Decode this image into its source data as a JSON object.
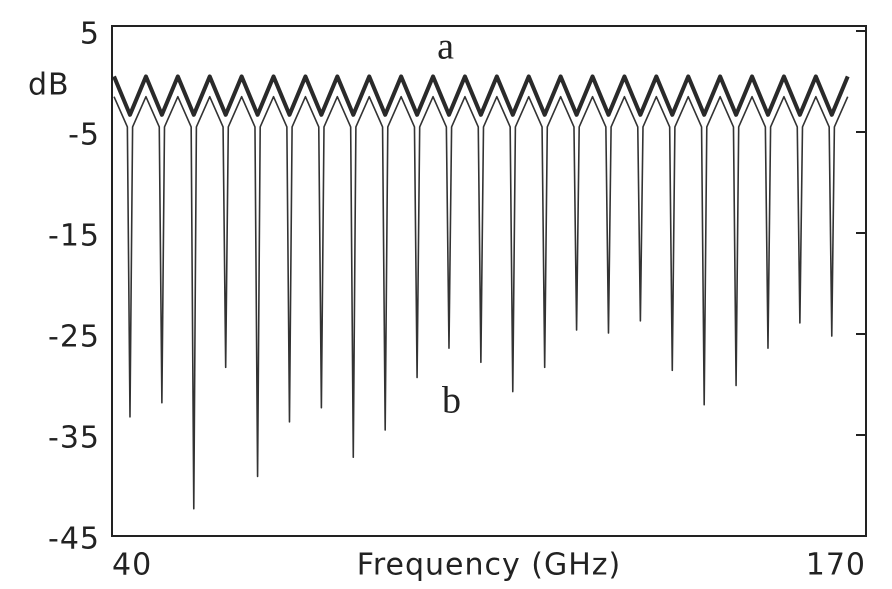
{
  "chart_data": {
    "type": "line",
    "y_unit": "dB",
    "xlabel": "Frequency (GHz)",
    "annotations": [
      "a",
      "b"
    ],
    "xlim": [
      40,
      170
    ],
    "xticks": [
      40,
      170
    ],
    "ylim": [
      -45,
      5
    ],
    "yticks": [
      5,
      -5,
      -15,
      -25,
      -35,
      -45
    ],
    "series": [
      {
        "name": "a",
        "color": "#2a2a2a",
        "x": [
          40.35,
          43.1,
          45.85,
          48.6,
          51.35,
          54.1,
          56.85,
          59.6,
          62.35,
          65.1,
          67.85,
          70.6,
          73.35,
          76.1,
          78.85,
          81.6,
          84.35,
          87.1,
          89.85,
          92.6,
          95.35,
          98.1,
          100.85,
          103.6,
          106.35,
          109.1,
          111.85,
          114.6,
          117.35,
          120.1,
          122.85,
          125.6,
          128.35,
          131.1,
          133.85,
          136.6,
          139.35,
          142.1,
          144.85,
          147.6,
          150.35,
          153.1,
          155.85,
          158.6,
          161.35,
          164.1,
          166.85
        ],
        "values": [
          0.5,
          -3.3,
          0.5,
          -3.3,
          0.5,
          -3.3,
          0.5,
          -3.3,
          0.5,
          -3.3,
          0.5,
          -3.3,
          0.5,
          -3.3,
          0.5,
          -3.3,
          0.5,
          -3.3,
          0.5,
          -3.3,
          0.5,
          -3.3,
          0.5,
          -3.3,
          0.5,
          -3.3,
          0.5,
          -3.3,
          0.5,
          -3.3,
          0.5,
          -3.3,
          0.5,
          -3.3,
          0.5,
          -3.3,
          0.5,
          -3.3,
          0.5,
          -3.3,
          0.5,
          -3.3,
          0.5,
          -3.3,
          0.5,
          -3.3,
          0.5
        ]
      },
      {
        "name": "b",
        "color": "#333333",
        "x": [
          40.35,
          42.65,
          43.1,
          43.55,
          45.85,
          48.15,
          48.6,
          49.05,
          51.35,
          53.65,
          54.1,
          54.55,
          56.85,
          59.15,
          59.6,
          60.05,
          62.35,
          64.65,
          65.1,
          65.55,
          67.85,
          70.15,
          70.6,
          71.05,
          73.35,
          75.65,
          76.1,
          76.55,
          78.85,
          81.15,
          81.6,
          82.05,
          84.35,
          86.65,
          87.1,
          87.55,
          89.85,
          92.15,
          92.6,
          93.05,
          95.35,
          97.65,
          98.1,
          98.55,
          100.85,
          103.15,
          103.6,
          104.05,
          106.35,
          108.65,
          109.1,
          109.55,
          111.85,
          114.15,
          114.6,
          115.05,
          117.35,
          119.65,
          120.1,
          120.55,
          122.85,
          125.15,
          125.6,
          126.05,
          128.35,
          130.65,
          131.1,
          131.55,
          133.85,
          136.15,
          136.6,
          137.05,
          139.35,
          141.65,
          142.1,
          142.55,
          144.85,
          147.15,
          147.6,
          148.05,
          150.35,
          152.65,
          153.1,
          153.55,
          155.85,
          158.15,
          158.6,
          159.05,
          161.35,
          163.65,
          164.1,
          164.55,
          166.85
        ],
        "values": [
          -1.5,
          -4.5,
          -33.2,
          -4.5,
          -1.5,
          -4.5,
          -31.8,
          -4.5,
          -1.5,
          -4.5,
          -42.3,
          -4.5,
          -1.5,
          -4.5,
          -28.3,
          -4.5,
          -1.5,
          -4.5,
          -39.1,
          -4.5,
          -1.5,
          -4.5,
          -33.7,
          -4.5,
          -1.5,
          -4.5,
          -32.3,
          -4.5,
          -1.5,
          -4.5,
          -37.2,
          -4.5,
          -1.5,
          -4.5,
          -34.5,
          -4.5,
          -1.5,
          -4.5,
          -29.3,
          -4.5,
          -1.5,
          -4.5,
          -26.4,
          -4.5,
          -1.5,
          -4.5,
          -27.8,
          -4.5,
          -1.5,
          -4.5,
          -30.7,
          -4.5,
          -1.5,
          -4.5,
          -28.3,
          -4.5,
          -1.5,
          -4.5,
          -24.6,
          -4.5,
          -1.5,
          -4.5,
          -24.9,
          -4.5,
          -1.5,
          -4.5,
          -23.7,
          -4.5,
          -1.5,
          -4.5,
          -28.6,
          -4.5,
          -1.5,
          -4.5,
          -32,
          -4.5,
          -1.5,
          -4.5,
          -30.1,
          -4.5,
          -1.5,
          -4.5,
          -26.4,
          -4.5,
          -1.5,
          -4.5,
          -23.9,
          -4.5,
          -1.5,
          -4.5,
          -25.2,
          -4.5,
          -1.5
        ]
      }
    ]
  }
}
